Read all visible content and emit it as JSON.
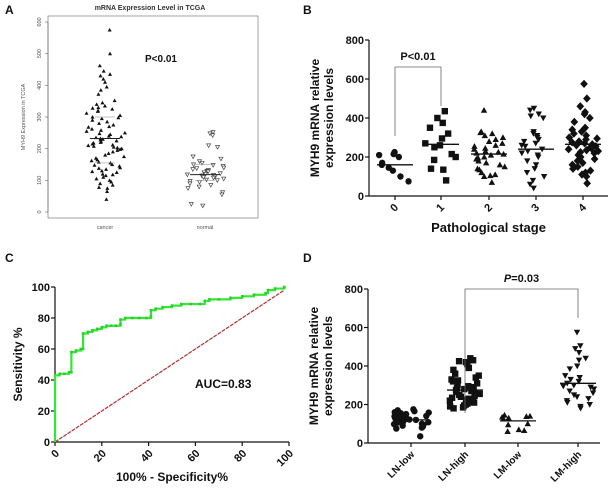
{
  "chart_data": [
    {
      "panel": "A",
      "type": "scatter",
      "title": "mRNA Expression Level in TCGA",
      "ylabel": "MYH9 Expression in TCGA",
      "xlabel": "",
      "ylim": [
        0,
        600
      ],
      "yticks": [
        0,
        100,
        200,
        300,
        400,
        500,
        600
      ],
      "categories": [
        "cancer",
        "normal"
      ],
      "annotation": "P<0.01",
      "groups": [
        {
          "name": "cancer",
          "marker": "triangle-filled",
          "median": 232,
          "q1": 155,
          "q3": 300,
          "values": [
            575,
            500,
            462,
            445,
            435,
            430,
            420,
            410,
            395,
            385,
            372,
            352,
            345,
            340,
            335,
            330,
            328,
            325,
            320,
            318,
            312,
            305,
            300,
            298,
            295,
            290,
            285,
            280,
            275,
            270,
            268,
            262,
            258,
            255,
            250,
            248,
            245,
            240,
            238,
            235,
            232,
            230,
            228,
            225,
            222,
            220,
            218,
            215,
            212,
            210,
            208,
            205,
            203,
            200,
            198,
            195,
            190,
            185,
            180,
            175,
            170,
            165,
            162,
            158,
            155,
            150,
            148,
            145,
            140,
            138,
            135,
            130,
            128,
            125,
            120,
            118,
            115,
            110,
            105,
            100,
            95,
            90,
            85,
            78,
            75,
            65,
            40
          ]
        },
        {
          "name": "normal",
          "marker": "triangle-open",
          "median": 118,
          "q1": 100,
          "q3": 150,
          "values": [
            252,
            248,
            242,
            210,
            205,
            175,
            168,
            160,
            155,
            150,
            148,
            145,
            140,
            138,
            135,
            132,
            130,
            128,
            125,
            122,
            120,
            118,
            117,
            115,
            112,
            110,
            108,
            105,
            102,
            100,
            98,
            95,
            90,
            85,
            80,
            75,
            62,
            55,
            25,
            20
          ]
        }
      ]
    },
    {
      "panel": "B",
      "type": "scatter",
      "title": "",
      "ylabel": "MYH9 mRNA relative expression levels",
      "xlabel": "Pathological stage",
      "ylim": [
        0,
        800
      ],
      "yticks": [
        0,
        200,
        400,
        600,
        800
      ],
      "categories": [
        "0",
        "1",
        "2",
        "3",
        "4"
      ],
      "annotation": {
        "text": "P<0.01",
        "from": "0",
        "to": "1"
      },
      "groups": [
        {
          "name": "0",
          "marker": "circle",
          "median": 160,
          "values": [
            225,
            215,
            210,
            200,
            170,
            160,
            145,
            130,
            100,
            75
          ]
        },
        {
          "name": "1",
          "marker": "square",
          "median": 265,
          "values": [
            435,
            400,
            375,
            350,
            320,
            295,
            270,
            260,
            250,
            215,
            200,
            185,
            140,
            135,
            80
          ]
        },
        {
          "name": "2",
          "marker": "triangle-up",
          "median": 215,
          "values": [
            440,
            330,
            325,
            320,
            310,
            300,
            290,
            280,
            270,
            260,
            255,
            245,
            240,
            230,
            225,
            220,
            215,
            210,
            200,
            195,
            190,
            180,
            170,
            160,
            150,
            140,
            135,
            120,
            110,
            105,
            100,
            70
          ]
        },
        {
          "name": "3",
          "marker": "triangle-down",
          "median": 240,
          "values": [
            450,
            440,
            420,
            410,
            400,
            330,
            320,
            310,
            300,
            290,
            280,
            270,
            260,
            255,
            240,
            230,
            220,
            210,
            200,
            180,
            160,
            140,
            120,
            100,
            80,
            60,
            40
          ]
        },
        {
          "name": "4",
          "marker": "diamond",
          "median": 265,
          "values": [
            575,
            500,
            460,
            430,
            420,
            400,
            380,
            350,
            340,
            330,
            320,
            310,
            300,
            295,
            290,
            280,
            275,
            270,
            265,
            260,
            255,
            250,
            245,
            240,
            235,
            230,
            225,
            220,
            210,
            200,
            190,
            180,
            170,
            160,
            150,
            140,
            130,
            120,
            110,
            100,
            65
          ]
        }
      ]
    },
    {
      "panel": "C",
      "type": "line",
      "title": "",
      "ylabel": "Sensitivity %",
      "xlabel": "100% - Specificity%",
      "xlim": [
        0,
        100
      ],
      "ylim": [
        0,
        100
      ],
      "xticks": [
        0,
        20,
        40,
        60,
        80,
        100
      ],
      "yticks": [
        0,
        20,
        40,
        60,
        80,
        100
      ],
      "annotation": "AUC=0.83",
      "series": [
        {
          "name": "ROC",
          "color": "#33e833",
          "x": [
            0,
            0,
            2,
            4,
            6,
            7,
            7,
            9,
            11,
            12,
            12,
            14,
            16,
            18,
            20,
            22,
            24,
            26,
            28,
            28,
            30,
            33,
            36,
            39,
            41,
            41,
            43,
            46,
            50,
            54,
            58,
            62,
            64,
            66,
            70,
            75,
            80,
            85,
            90,
            91,
            94,
            98
          ],
          "y": [
            0,
            43,
            44,
            44,
            45,
            45,
            58,
            59,
            60,
            60,
            70,
            71,
            72,
            73,
            74,
            75,
            75,
            75,
            76,
            79,
            80,
            80,
            80,
            80,
            81,
            85,
            86,
            87,
            88,
            89,
            89,
            89,
            91,
            92,
            92,
            93,
            94,
            95,
            96,
            98,
            99,
            100
          ]
        },
        {
          "name": "Reference",
          "color": "#b03030",
          "x": [
            0,
            98
          ],
          "y": [
            0,
            98
          ]
        }
      ]
    },
    {
      "panel": "D",
      "type": "scatter",
      "title": "",
      "ylabel": "MYH9 mRNA relative expression levels",
      "xlabel": "",
      "ylim": [
        0,
        800
      ],
      "yticks": [
        0,
        200,
        400,
        600,
        800
      ],
      "categories": [
        "LN-low",
        "LN-high",
        "LM-low",
        "LM-high"
      ],
      "annotation": {
        "text": "=0.03",
        "italic_prefix": "P",
        "from": "LN-high",
        "to": "LM-high"
      },
      "groups": [
        {
          "name": "LN-low",
          "marker": "circle",
          "median": 120,
          "values": [
            175,
            170,
            165,
            160,
            158,
            155,
            150,
            148,
            145,
            140,
            138,
            135,
            130,
            128,
            125,
            122,
            120,
            118,
            115,
            112,
            110,
            108,
            105,
            100,
            98,
            95,
            90,
            85,
            80,
            75,
            35
          ]
        },
        {
          "name": "LN-high",
          "marker": "square",
          "median": 275,
          "values": [
            440,
            430,
            425,
            420,
            410,
            390,
            380,
            360,
            350,
            340,
            330,
            325,
            320,
            310,
            300,
            295,
            290,
            285,
            280,
            275,
            270,
            265,
            260,
            255,
            250,
            245,
            240,
            235,
            230,
            225,
            220,
            215,
            210,
            205,
            200,
            195,
            190,
            185,
            180
          ]
        },
        {
          "name": "LM-low",
          "marker": "triangle-up",
          "median": 115,
          "values": [
            145,
            140,
            138,
            135,
            130,
            125,
            100,
            95,
            70,
            65,
            60
          ]
        },
        {
          "name": "LM-high",
          "marker": "triangle-down",
          "median": 310,
          "values": [
            575,
            505,
            490,
            470,
            440,
            430,
            400,
            385,
            350,
            340,
            330,
            320,
            310,
            300,
            295,
            290,
            280,
            270,
            260,
            250,
            240,
            230,
            220,
            210,
            200,
            190,
            180
          ]
        }
      ]
    }
  ],
  "panel_labels": [
    "A",
    "B",
    "C",
    "D"
  ]
}
